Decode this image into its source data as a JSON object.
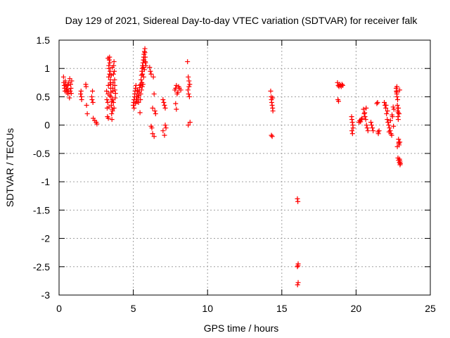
{
  "chart_data": {
    "type": "scatter",
    "title": "Day 129 of 2021, Sidereal Day-to-day VTEC variation (SDTVAR) for receiver falk",
    "xlabel": "GPS time / hours",
    "ylabel": "SDTVAR / TECUs",
    "xlim": [
      0,
      25
    ],
    "ylim": [
      -3,
      1.5
    ],
    "xticks": [
      0,
      5,
      10,
      15,
      20,
      25
    ],
    "xtick_labels": [
      "0",
      "5",
      "10",
      "15",
      "20",
      "25"
    ],
    "yticks": [
      1.5,
      1,
      0.5,
      0,
      -0.5,
      -1,
      -1.5,
      -2,
      -2.5,
      -3
    ],
    "ytick_labels": [
      "1.5",
      "1",
      "0.5",
      "0",
      "-0.5",
      "-1",
      "-1.5",
      "-2",
      "-2.5",
      "-3"
    ],
    "grid": true,
    "marker": "+",
    "color": "#ff0000",
    "series": [
      {
        "name": "SDTVAR",
        "x": [
          0.3,
          0.32,
          0.35,
          0.38,
          0.4,
          0.42,
          0.45,
          0.48,
          0.5,
          0.52,
          0.55,
          0.58,
          0.6,
          0.62,
          0.65,
          0.7,
          0.72,
          0.75,
          0.78,
          0.8,
          0.82,
          0.85,
          1.45,
          1.48,
          1.5,
          1.52,
          1.8,
          1.82,
          1.85,
          1.9,
          2.2,
          2.22,
          2.25,
          2.28,
          2.3,
          2.4,
          2.5,
          2.55,
          3.2,
          3.22,
          3.24,
          3.26,
          3.28,
          3.3,
          3.32,
          3.34,
          3.36,
          3.38,
          3.4,
          3.42,
          3.44,
          3.46,
          3.48,
          3.5,
          3.52,
          3.54,
          3.56,
          3.58,
          3.6,
          3.62,
          3.64,
          3.66,
          3.68,
          3.7,
          3.72,
          3.74,
          3.76,
          3.78,
          3.8,
          3.3,
          3.35,
          3.4,
          3.45,
          3.5,
          3.55,
          3.6,
          3.32,
          3.36,
          3.42,
          3.48,
          3.52,
          3.58,
          3.62,
          3.66,
          3.7,
          3.75,
          5.0,
          5.02,
          5.05,
          5.08,
          5.1,
          5.12,
          5.15,
          5.18,
          5.2,
          5.22,
          5.25,
          5.28,
          5.3,
          5.32,
          5.35,
          5.38,
          5.4,
          5.42,
          5.45,
          5.48,
          5.5,
          5.52,
          5.55,
          5.58,
          5.6,
          5.62,
          5.65,
          5.68,
          5.7,
          5.72,
          5.75,
          5.78,
          5.8,
          5.82,
          5.85,
          5.55,
          5.6,
          5.65,
          5.7,
          5.75,
          5.8,
          5.5,
          5.58,
          5.62,
          5.68,
          5.72,
          5.78,
          5.05,
          5.15,
          5.25,
          5.35,
          5.45,
          6.1,
          6.15,
          6.2,
          6.25,
          6.3,
          6.35,
          6.4,
          6.45,
          6.5,
          6.3,
          6.4,
          6.2,
          7.0,
          7.05,
          7.1,
          7.15,
          7.2,
          7.0,
          7.1,
          7.15,
          7.8,
          7.85,
          7.9,
          7.95,
          8.0,
          8.05,
          7.85,
          7.9,
          8.1,
          8.2,
          8.65,
          8.7,
          8.75,
          8.8,
          8.68,
          8.72,
          8.78,
          8.82,
          8.7,
          8.75,
          14.25,
          14.28,
          14.3,
          14.32,
          14.35,
          14.38,
          14.4,
          14.3,
          14.35,
          14.38,
          16.05,
          16.08,
          16.1,
          16.05,
          16.1,
          16.06,
          16.09,
          18.75,
          18.8,
          18.85,
          18.9,
          18.95,
          19.0,
          19.05,
          19.1,
          18.78,
          18.82,
          19.7,
          19.72,
          19.75,
          19.78,
          19.8,
          19.72,
          19.76,
          20.2,
          20.25,
          20.3,
          20.35,
          20.4,
          20.5,
          20.55,
          20.6,
          20.65,
          20.7,
          20.75,
          20.8,
          20.58,
          20.68,
          21.0,
          21.05,
          21.1,
          21.15,
          21.4,
          21.45,
          21.5,
          21.55,
          21.48,
          21.9,
          21.95,
          22.0,
          22.05,
          22.1,
          22.15,
          22.2,
          22.25,
          22.3,
          22.35,
          22.4,
          22.45,
          22.5,
          22.55,
          22.02,
          22.12,
          22.22,
          22.32,
          22.42,
          22.52,
          22.7,
          22.72,
          22.74,
          22.76,
          22.78,
          22.8,
          22.82,
          22.84,
          22.86,
          22.88,
          22.9,
          22.92,
          22.94,
          22.96,
          22.98,
          22.75,
          22.8,
          22.85,
          22.9,
          22.95,
          22.78,
          22.82,
          22.86,
          22.92,
          22.96,
          22.74,
          22.84,
          22.88,
          22.94
        ],
        "y": [
          0.85,
          0.75,
          0.7,
          0.65,
          0.6,
          0.78,
          0.72,
          0.68,
          0.62,
          0.58,
          0.64,
          0.7,
          0.55,
          0.6,
          0.75,
          0.48,
          0.82,
          0.6,
          0.72,
          0.65,
          0.56,
          0.78,
          0.55,
          0.6,
          0.5,
          0.45,
          0.72,
          0.68,
          0.35,
          0.2,
          0.5,
          0.45,
          0.6,
          0.4,
          0.12,
          0.08,
          0.05,
          0.02,
          0.6,
          0.45,
          0.3,
          0.15,
          0.4,
          0.55,
          0.7,
          0.85,
          1.0,
          1.15,
          1.2,
          1.1,
          0.95,
          0.8,
          0.65,
          0.5,
          0.35,
          0.2,
          0.1,
          0.28,
          0.45,
          0.6,
          0.75,
          0.9,
          1.05,
          1.12,
          0.95,
          0.8,
          0.62,
          0.48,
          0.56,
          1.18,
          1.05,
          0.9,
          0.75,
          0.58,
          0.42,
          0.25,
          0.12,
          0.32,
          0.52,
          0.72,
          0.88,
          1.02,
          0.65,
          0.4,
          0.3,
          0.7,
          0.35,
          0.4,
          0.45,
          0.5,
          0.55,
          0.6,
          0.65,
          0.7,
          0.45,
          0.5,
          0.55,
          0.6,
          0.62,
          0.48,
          0.4,
          0.52,
          0.58,
          0.66,
          0.7,
          0.45,
          0.72,
          0.8,
          0.88,
          0.95,
          1.0,
          1.05,
          1.1,
          1.15,
          1.2,
          1.25,
          1.3,
          1.35,
          1.2,
          1.1,
          1.05,
          0.62,
          0.68,
          0.72,
          0.85,
          0.98,
          1.12,
          0.55,
          0.75,
          0.9,
          1.02,
          1.15,
          1.28,
          0.3,
          0.38,
          0.42,
          0.52,
          0.22,
          1.02,
          0.95,
          -0.02,
          -0.05,
          0.3,
          0.85,
          0.55,
          0.25,
          0.2,
          -0.15,
          -0.2,
          0.9,
          0.45,
          0.4,
          0.35,
          0.3,
          -0.05,
          -0.1,
          -0.18,
          0.0,
          0.62,
          0.65,
          0.7,
          0.55,
          0.58,
          0.68,
          0.38,
          0.28,
          0.65,
          0.62,
          1.12,
          0.85,
          0.78,
          0.72,
          0.62,
          0.55,
          0.5,
          0.05,
          0.0,
          0.68,
          0.6,
          0.5,
          0.45,
          0.4,
          0.35,
          0.3,
          0.25,
          -0.18,
          -0.2,
          0.48,
          -1.3,
          -1.35,
          -2.45,
          -2.5,
          -2.78,
          -2.82,
          -2.48,
          0.75,
          0.7,
          0.68,
          0.72,
          0.7,
          0.68,
          0.72,
          0.7,
          0.45,
          0.42,
          0.15,
          0.1,
          0.05,
          0.0,
          -0.05,
          -0.1,
          -0.15,
          0.05,
          0.08,
          0.06,
          0.1,
          0.12,
          0.28,
          0.2,
          0.15,
          0.1,
          0.0,
          -0.05,
          -0.1,
          0.22,
          0.3,
          0.05,
          0.0,
          -0.05,
          -0.1,
          0.38,
          0.4,
          -0.15,
          -0.1,
          -0.12,
          0.4,
          0.35,
          0.3,
          0.2,
          0.1,
          0.05,
          0.0,
          -0.05,
          -0.1,
          -0.15,
          -0.18,
          0.15,
          0.32,
          0.28,
          0.35,
          0.25,
          -0.12,
          0.08,
          0.18,
          -0.02,
          0.65,
          0.6,
          0.55,
          0.5,
          0.35,
          0.25,
          0.15,
          0.1,
          -0.25,
          -0.3,
          -0.35,
          -0.6,
          -0.62,
          -0.65,
          -0.68,
          0.68,
          0.45,
          0.3,
          0.2,
          -0.3,
          -0.38,
          -0.58,
          -0.62,
          -0.66,
          -0.7,
          0.58,
          0.22,
          -0.32,
          0.62
        ]
      }
    ]
  }
}
